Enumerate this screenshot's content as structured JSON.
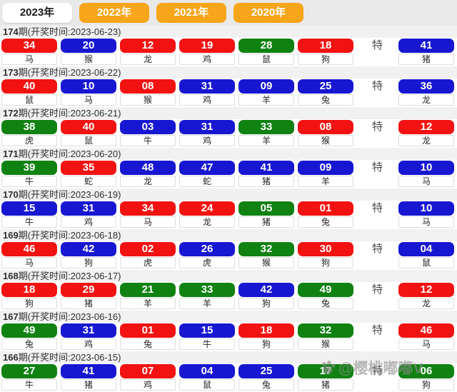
{
  "tabs": [
    {
      "label": "2023年",
      "active": true
    },
    {
      "label": "2022年",
      "active": false
    },
    {
      "label": "2021年",
      "active": false
    },
    {
      "label": "2020年",
      "active": false
    }
  ],
  "special_marker": "特",
  "colors": {
    "red": "#f21212",
    "blue": "#1717d2",
    "green": "#108212",
    "tab_orange": "#f7a51a"
  },
  "draws": [
    {
      "period_num": "174",
      "period_suffix": "期(开奖时间:2023-06-23)",
      "balls": [
        {
          "num": "34",
          "zodiac": "马",
          "color": "red"
        },
        {
          "num": "20",
          "zodiac": "猴",
          "color": "blue"
        },
        {
          "num": "12",
          "zodiac": "龙",
          "color": "red"
        },
        {
          "num": "19",
          "zodiac": "鸡",
          "color": "red"
        },
        {
          "num": "28",
          "zodiac": "鼠",
          "color": "green"
        },
        {
          "num": "18",
          "zodiac": "狗",
          "color": "red"
        }
      ],
      "special": {
        "num": "41",
        "zodiac": "猪",
        "color": "blue"
      }
    },
    {
      "period_num": "173",
      "period_suffix": "期(开奖时间:2023-06-22)",
      "balls": [
        {
          "num": "40",
          "zodiac": "鼠",
          "color": "red"
        },
        {
          "num": "10",
          "zodiac": "马",
          "color": "blue"
        },
        {
          "num": "08",
          "zodiac": "猴",
          "color": "red"
        },
        {
          "num": "31",
          "zodiac": "鸡",
          "color": "blue"
        },
        {
          "num": "09",
          "zodiac": "羊",
          "color": "blue"
        },
        {
          "num": "25",
          "zodiac": "兔",
          "color": "blue"
        }
      ],
      "special": {
        "num": "36",
        "zodiac": "龙",
        "color": "blue"
      }
    },
    {
      "period_num": "172",
      "period_suffix": "期(开奖时间:2023-06-21)",
      "balls": [
        {
          "num": "38",
          "zodiac": "虎",
          "color": "green"
        },
        {
          "num": "40",
          "zodiac": "鼠",
          "color": "red"
        },
        {
          "num": "03",
          "zodiac": "牛",
          "color": "blue"
        },
        {
          "num": "31",
          "zodiac": "鸡",
          "color": "blue"
        },
        {
          "num": "33",
          "zodiac": "羊",
          "color": "green"
        },
        {
          "num": "08",
          "zodiac": "猴",
          "color": "red"
        }
      ],
      "special": {
        "num": "12",
        "zodiac": "龙",
        "color": "red"
      }
    },
    {
      "period_num": "171",
      "period_suffix": "期(开奖时间:2023-06-20)",
      "balls": [
        {
          "num": "39",
          "zodiac": "牛",
          "color": "green"
        },
        {
          "num": "35",
          "zodiac": "蛇",
          "color": "red"
        },
        {
          "num": "48",
          "zodiac": "龙",
          "color": "blue"
        },
        {
          "num": "47",
          "zodiac": "蛇",
          "color": "blue"
        },
        {
          "num": "41",
          "zodiac": "猪",
          "color": "blue"
        },
        {
          "num": "09",
          "zodiac": "羊",
          "color": "blue"
        }
      ],
      "special": {
        "num": "10",
        "zodiac": "马",
        "color": "blue"
      }
    },
    {
      "period_num": "170",
      "period_suffix": "期(开奖时间:2023-06-19)",
      "balls": [
        {
          "num": "15",
          "zodiac": "牛",
          "color": "blue"
        },
        {
          "num": "31",
          "zodiac": "鸡",
          "color": "blue"
        },
        {
          "num": "34",
          "zodiac": "马",
          "color": "red"
        },
        {
          "num": "24",
          "zodiac": "龙",
          "color": "red"
        },
        {
          "num": "05",
          "zodiac": "猪",
          "color": "green"
        },
        {
          "num": "01",
          "zodiac": "兔",
          "color": "red"
        }
      ],
      "special": {
        "num": "10",
        "zodiac": "马",
        "color": "blue"
      }
    },
    {
      "period_num": "169",
      "period_suffix": "期(开奖时间:2023-06-18)",
      "balls": [
        {
          "num": "46",
          "zodiac": "马",
          "color": "red"
        },
        {
          "num": "42",
          "zodiac": "狗",
          "color": "blue"
        },
        {
          "num": "02",
          "zodiac": "虎",
          "color": "red"
        },
        {
          "num": "26",
          "zodiac": "虎",
          "color": "blue"
        },
        {
          "num": "32",
          "zodiac": "猴",
          "color": "green"
        },
        {
          "num": "30",
          "zodiac": "狗",
          "color": "red"
        }
      ],
      "special": {
        "num": "04",
        "zodiac": "鼠",
        "color": "blue"
      }
    },
    {
      "period_num": "168",
      "period_suffix": "期(开奖时间:2023-06-17)",
      "balls": [
        {
          "num": "18",
          "zodiac": "狗",
          "color": "red"
        },
        {
          "num": "29",
          "zodiac": "猪",
          "color": "red"
        },
        {
          "num": "21",
          "zodiac": "羊",
          "color": "green"
        },
        {
          "num": "33",
          "zodiac": "羊",
          "color": "green"
        },
        {
          "num": "42",
          "zodiac": "狗",
          "color": "blue"
        },
        {
          "num": "49",
          "zodiac": "兔",
          "color": "green"
        }
      ],
      "special": {
        "num": "12",
        "zodiac": "龙",
        "color": "red"
      }
    },
    {
      "period_num": "167",
      "period_suffix": "期(开奖时间:2023-06-16)",
      "balls": [
        {
          "num": "49",
          "zodiac": "兔",
          "color": "green"
        },
        {
          "num": "31",
          "zodiac": "鸡",
          "color": "blue"
        },
        {
          "num": "01",
          "zodiac": "兔",
          "color": "red"
        },
        {
          "num": "15",
          "zodiac": "牛",
          "color": "blue"
        },
        {
          "num": "18",
          "zodiac": "狗",
          "color": "red"
        },
        {
          "num": "32",
          "zodiac": "猴",
          "color": "green"
        }
      ],
      "special": {
        "num": "46",
        "zodiac": "马",
        "color": "red"
      }
    },
    {
      "period_num": "166",
      "period_suffix": "期(开奖时间:2023-06-15)",
      "balls": [
        {
          "num": "27",
          "zodiac": "牛",
          "color": "green"
        },
        {
          "num": "41",
          "zodiac": "猪",
          "color": "blue"
        },
        {
          "num": "07",
          "zodiac": "鸡",
          "color": "red"
        },
        {
          "num": "04",
          "zodiac": "鼠",
          "color": "blue"
        },
        {
          "num": "25",
          "zodiac": "兔",
          "color": "blue"
        },
        {
          "num": "17",
          "zodiac": "猪",
          "color": "green"
        }
      ],
      "special": {
        "num": "06",
        "zodiac": "狗",
        "color": "green"
      }
    }
  ],
  "watermark": "@樱桃嘟嘟V"
}
